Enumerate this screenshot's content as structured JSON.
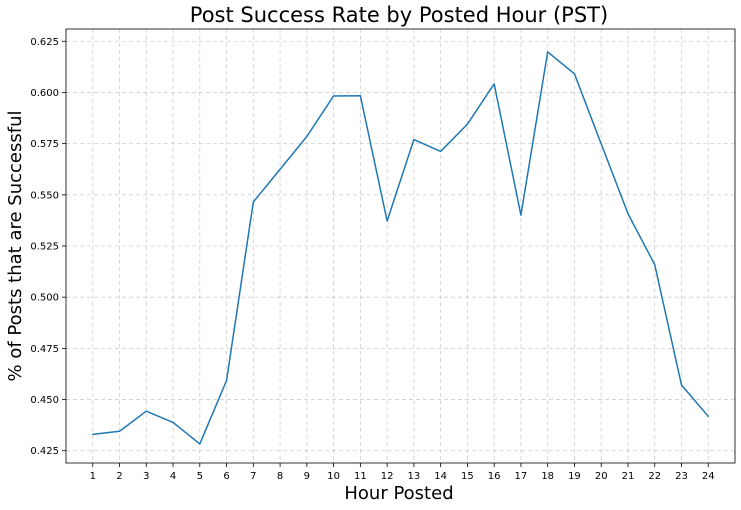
{
  "chart_data": {
    "type": "line",
    "title": "Post Success Rate by Posted Hour (PST)",
    "xlabel": "Hour Posted",
    "ylabel": "% of Posts that are Successful",
    "x": [
      1,
      2,
      3,
      4,
      5,
      6,
      7,
      8,
      9,
      10,
      11,
      12,
      13,
      14,
      15,
      16,
      17,
      18,
      19,
      20,
      21,
      22,
      23,
      24
    ],
    "x_tick_labels": [
      "1",
      "2",
      "3",
      "4",
      "5",
      "6",
      "7",
      "8",
      "9",
      "10",
      "11",
      "12",
      "13",
      "14",
      "15",
      "16",
      "17",
      "18",
      "19",
      "20",
      "21",
      "22",
      "23",
      "24"
    ],
    "series": [
      {
        "values": [
          0.433,
          0.4345,
          0.4443,
          0.4388,
          0.4283,
          0.4593,
          0.5465,
          0.5625,
          0.5785,
          0.5983,
          0.5984,
          0.5372,
          0.577,
          0.5712,
          0.5845,
          0.6042,
          0.5401,
          0.6198,
          0.6091,
          0.5749,
          0.5408,
          0.5159,
          0.4571,
          0.4418
        ],
        "color": "#1f77b4"
      }
    ],
    "xlim": [
      0,
      25
    ],
    "ylim": [
      0.419,
      0.631
    ],
    "y_ticks": [
      0.425,
      0.45,
      0.475,
      0.5,
      0.525,
      0.55,
      0.575,
      0.6,
      0.625
    ],
    "y_tick_labels": [
      "0.425",
      "0.450",
      "0.475",
      "0.500",
      "0.525",
      "0.550",
      "0.575",
      "0.600",
      "0.625"
    ],
    "grid": true,
    "legend": "none"
  }
}
